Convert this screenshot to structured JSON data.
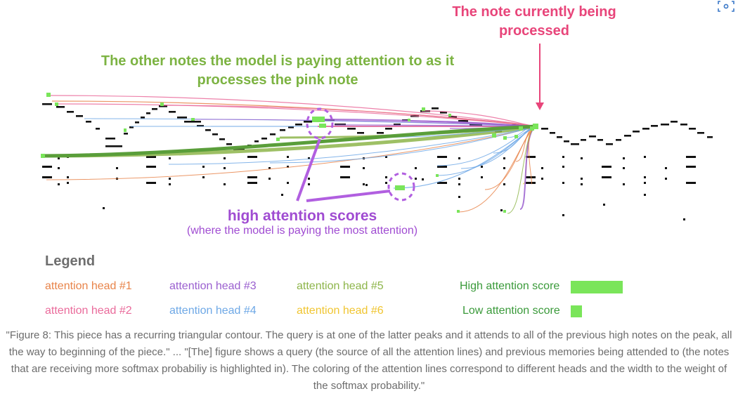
{
  "annotations": {
    "current_note": "The note currently being processed",
    "other_notes": "The other notes the model is paying attention to as it processes the pink note",
    "high_scores": "high attention scores",
    "high_scores_sub": "(where the model is paying the most attention)"
  },
  "legend": {
    "title": "Legend",
    "heads": [
      {
        "label": "attention head #1",
        "color": "#e8844a"
      },
      {
        "label": "attention head #2",
        "color": "#ea6b9b"
      },
      {
        "label": "attention head #3",
        "color": "#9a5fcf"
      },
      {
        "label": "attention head #4",
        "color": "#6ea8e6"
      },
      {
        "label": "attention head #5",
        "color": "#8db54a"
      },
      {
        "label": "attention head #6",
        "color": "#f0c531"
      }
    ],
    "high_score": "High attention score",
    "low_score": "Low attention score",
    "score_color": "#7ae55a"
  },
  "caption": "\"Figure 8: This piece has a recurring triangular contour. The query is at one of the latter peaks and it attends to all of the previous high notes on the peak, all the way to beginning of the piece.\" ... \"[The] figure shows a query (the source of all the attention lines) and previous memories being attended to (the notes that are receiving more softmax probabiliy is highlighted in). The coloring of the attention lines correspond to different heads and the width to the weight of the softmax probability.\"",
  "colors": {
    "pink": "#e8457a",
    "green": "#7cb342",
    "purple": "#a04cd2",
    "note": "#111111"
  },
  "icons": {
    "corner": "scan-icon"
  }
}
